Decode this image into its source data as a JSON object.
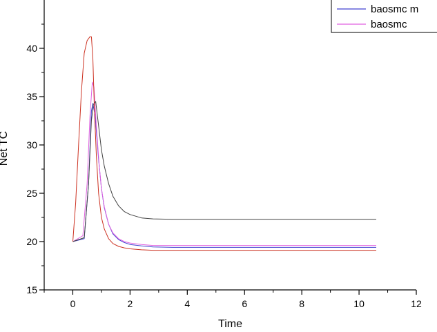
{
  "chart_data": {
    "type": "line",
    "xlabel": "Time",
    "ylabel": "Net TC",
    "xlim": [
      -1,
      12
    ],
    "ylim": [
      15,
      45
    ],
    "xticks": [
      0,
      2,
      4,
      6,
      8,
      10,
      12
    ],
    "yticks": [
      15,
      20,
      25,
      30,
      35,
      40
    ],
    "legend_position": "top-right",
    "grid": false,
    "series": [
      {
        "name": "baosmc m",
        "color": "#4040d0",
        "x": [
          0,
          0.4,
          0.55,
          0.65,
          0.7,
          0.78,
          0.9,
          1.0,
          1.1,
          1.25,
          1.4,
          1.6,
          1.8,
          2.0,
          2.4,
          2.8,
          3.5,
          5,
          8,
          10.6
        ],
        "y": [
          20,
          20.3,
          26,
          33.5,
          34.3,
          33,
          28.5,
          25.5,
          23.5,
          21.8,
          20.8,
          20.2,
          19.9,
          19.7,
          19.55,
          19.45,
          19.4,
          19.4,
          19.4,
          19.4
        ]
      },
      {
        "name": "baosmc",
        "color": "#e060e0",
        "x": [
          0,
          0.35,
          0.5,
          0.6,
          0.68,
          0.74,
          0.82,
          0.92,
          1.0,
          1.1,
          1.25,
          1.4,
          1.6,
          1.8,
          2.0,
          2.4,
          2.8,
          3.5,
          5,
          8,
          10.6
        ],
        "y": [
          20,
          20.6,
          26,
          33,
          36.5,
          36,
          32,
          28,
          25.5,
          23.6,
          21.8,
          20.9,
          20.3,
          20.0,
          19.85,
          19.7,
          19.6,
          19.6,
          19.6,
          19.6,
          19.6
        ]
      },
      {
        "color": "#404040",
        "x": [
          0,
          0.4,
          0.55,
          0.65,
          0.72,
          0.8,
          0.9,
          1.0,
          1.1,
          1.25,
          1.4,
          1.6,
          1.8,
          2.0,
          2.4,
          2.8,
          3.5,
          5,
          8,
          10.6
        ],
        "y": [
          20,
          20.4,
          26,
          32.5,
          34.2,
          34.5,
          32,
          29.5,
          27.8,
          26,
          24.7,
          23.7,
          23.1,
          22.8,
          22.45,
          22.35,
          22.3,
          22.3,
          22.3,
          22.3
        ]
      },
      {
        "color": "#cc3020",
        "x": [
          0,
          0.1,
          0.2,
          0.3,
          0.4,
          0.5,
          0.6,
          0.65,
          0.7,
          0.75,
          0.82,
          0.9,
          1.0,
          1.1,
          1.25,
          1.4,
          1.6,
          1.8,
          2.0,
          2.4,
          2.8,
          3.5,
          5,
          8,
          10.6
        ],
        "y": [
          20,
          24,
          30,
          35.5,
          39.5,
          40.8,
          41.2,
          41.2,
          39,
          34,
          29,
          25,
          22.5,
          21.3,
          20.3,
          19.8,
          19.5,
          19.35,
          19.25,
          19.15,
          19.1,
          19.1,
          19.1,
          19.1,
          19.1
        ]
      }
    ]
  }
}
